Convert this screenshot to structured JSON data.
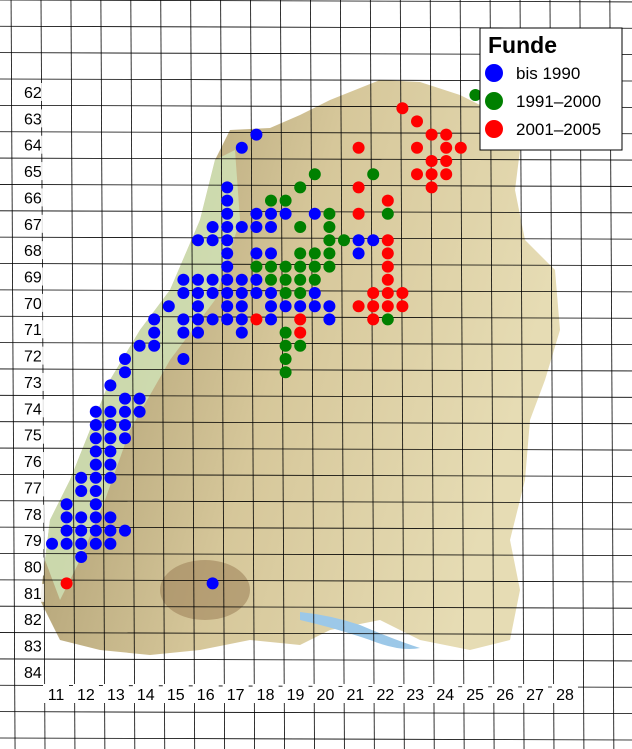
{
  "chart_data": {
    "type": "dotmap",
    "legend_title": "Funde",
    "xticks": [
      11,
      12,
      13,
      14,
      15,
      16,
      17,
      18,
      19,
      20,
      21,
      22,
      23,
      24,
      25,
      26,
      27,
      28
    ],
    "yticks": [
      62,
      63,
      64,
      65,
      66,
      67,
      68,
      69,
      70,
      71,
      72,
      73,
      74,
      75,
      76,
      77,
      78,
      79,
      80,
      81,
      82,
      83,
      84
    ],
    "series": [
      {
        "name": "bis 1990",
        "color": "#0000ff",
        "x": [
          18,
          17.5,
          17,
          17,
          17,
          18,
          18.5,
          19,
          20,
          16.5,
          17,
          17.5,
          18,
          18.5,
          16,
          16.5,
          17,
          21.5,
          22,
          17,
          18,
          18.5,
          21.5,
          17,
          15.5,
          16,
          16.5,
          17,
          17.5,
          18,
          15.5,
          16,
          16.5,
          17,
          17.5,
          18,
          18.5,
          20,
          15,
          16,
          17,
          17.5,
          18.5,
          19,
          19.5,
          20,
          20.5,
          14.5,
          15.5,
          16,
          16.5,
          17,
          17.5,
          18.5,
          20.5,
          14.5,
          15.5,
          16,
          17.5,
          14,
          14.5,
          13.5,
          15.5,
          13.5,
          13,
          13.5,
          14,
          12.5,
          13,
          13.5,
          14,
          12.5,
          13,
          13.5,
          12.5,
          13,
          13.5,
          12.5,
          13,
          12.5,
          13,
          12,
          12.5,
          13,
          12,
          12.5,
          11.5,
          12.5,
          11.5,
          12,
          12.5,
          13,
          11.5,
          12,
          12.5,
          13,
          13.5,
          11,
          11.5,
          12,
          12.5,
          13,
          12,
          16.5
        ],
        "y": [
          63.5,
          64,
          65.5,
          66,
          66.5,
          66.5,
          66.5,
          66.5,
          66.5,
          67,
          67,
          67,
          67,
          67,
          67.5,
          67.5,
          67.5,
          67.5,
          67.5,
          68,
          68,
          68,
          68,
          68.5,
          69,
          69,
          69,
          69,
          69,
          69,
          69.5,
          69.5,
          69.5,
          69.5,
          69.5,
          69.5,
          69.5,
          69.5,
          70,
          70,
          70,
          70,
          70,
          70,
          70,
          70,
          70,
          70.5,
          70.5,
          70.5,
          70.5,
          70.5,
          70.5,
          70.5,
          70.5,
          71,
          71,
          71,
          71,
          71.5,
          71.5,
          72,
          72,
          72.5,
          73,
          73.5,
          73.5,
          74,
          74,
          74,
          74,
          74.5,
          74.5,
          74.5,
          75,
          75,
          75,
          75.5,
          75.5,
          76,
          76,
          76.5,
          76.5,
          76.5,
          77,
          77,
          77.5,
          77.5,
          78,
          78,
          78,
          78,
          78.5,
          78.5,
          78.5,
          78.5,
          78.5,
          79,
          79,
          79,
          79,
          79,
          79.5,
          80.5
        ]
      },
      {
        "name": "1991–2000",
        "color": "#008000",
        "x": [
          25.5,
          20,
          22,
          19.5,
          18.5,
          19,
          20.5,
          22.5,
          19.5,
          20.5,
          20.5,
          21,
          19.5,
          20,
          20.5,
          18,
          18.5,
          19,
          19.5,
          20,
          20.5,
          18.5,
          19,
          19.5,
          20,
          19,
          19.5,
          22.5,
          19,
          19,
          19.5,
          19,
          19
        ],
        "y": [
          62,
          65,
          65,
          65.5,
          66,
          66,
          66.5,
          66.5,
          67,
          67,
          67.5,
          67.5,
          68,
          68,
          68,
          68.5,
          68.5,
          68.5,
          68.5,
          68.5,
          68.5,
          69,
          69,
          69,
          69,
          69.5,
          69.5,
          70.5,
          71,
          71.5,
          71.5,
          72,
          72.5
        ]
      },
      {
        "name": "2001–2005",
        "color": "#ff0000",
        "x": [
          23,
          23.5,
          24,
          24.5,
          21.5,
          23.5,
          24.5,
          25,
          24,
          24.5,
          23.5,
          24,
          24.5,
          21.5,
          24,
          22.5,
          21.5,
          22.5,
          22.5,
          22.5,
          22.5,
          22,
          22.5,
          23,
          21.5,
          22,
          22.5,
          23,
          18,
          19.5,
          22,
          19.5,
          11.5
        ],
        "y": [
          62.5,
          63,
          63.5,
          63.5,
          64,
          64,
          64,
          64,
          64.5,
          64.5,
          65,
          65,
          65,
          65.5,
          65.5,
          66,
          66.5,
          67.5,
          68,
          68.5,
          69,
          69.5,
          69.5,
          69.5,
          70,
          70,
          70,
          70,
          70.5,
          70.5,
          70.5,
          71,
          80.5
        ]
      }
    ]
  }
}
